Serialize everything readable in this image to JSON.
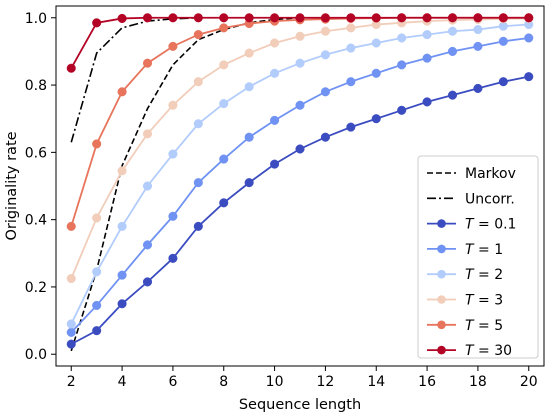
{
  "chart_data": {
    "type": "line",
    "xlabel": "Sequence length",
    "ylabel": "Originality rate",
    "xlim": [
      1.4,
      20.6
    ],
    "ylim": [
      -0.035,
      1.035
    ],
    "xticks": [
      2,
      4,
      6,
      8,
      10,
      12,
      14,
      16,
      18,
      20
    ],
    "yticks": [
      0.0,
      0.2,
      0.4,
      0.6,
      0.8,
      1.0
    ],
    "ytick_labels": [
      "0.0",
      "0.2",
      "0.4",
      "0.6",
      "0.8",
      "1.0"
    ],
    "x": [
      2,
      3,
      4,
      5,
      6,
      7,
      8,
      9,
      10,
      11,
      12,
      13,
      14,
      15,
      16,
      17,
      18,
      19,
      20
    ],
    "grid": false,
    "legend_position": "lower-right",
    "reference_lines": [
      {
        "name": "Markov",
        "style": "dashed",
        "color": "#000000",
        "x": [
          2,
          3,
          4,
          5,
          6,
          7,
          8,
          9,
          10,
          11
        ],
        "values": [
          0.01,
          0.25,
          0.56,
          0.73,
          0.86,
          0.935,
          0.965,
          0.985,
          0.995,
          1.0
        ]
      },
      {
        "name": "Uncorr.",
        "style": "dashdot",
        "color": "#000000",
        "x": [
          2,
          3,
          4,
          5,
          6,
          7
        ],
        "values": [
          0.63,
          0.895,
          0.97,
          0.99,
          0.997,
          1.0
        ]
      }
    ],
    "series": [
      {
        "name": "T = 0.1",
        "label_prefix": "T",
        "label_value": "0.1",
        "color": "#3b4cc0",
        "values": [
          0.03,
          0.07,
          0.15,
          0.215,
          0.285,
          0.38,
          0.45,
          0.51,
          0.565,
          0.61,
          0.645,
          0.675,
          0.7,
          0.725,
          0.75,
          0.77,
          0.79,
          0.81,
          0.825
        ]
      },
      {
        "name": "T = 1",
        "label_prefix": "T",
        "label_value": "1",
        "color": "#6f92f3",
        "values": [
          0.065,
          0.145,
          0.235,
          0.325,
          0.41,
          0.51,
          0.58,
          0.645,
          0.695,
          0.74,
          0.78,
          0.81,
          0.835,
          0.86,
          0.88,
          0.9,
          0.915,
          0.93,
          0.94
        ]
      },
      {
        "name": "T = 2",
        "label_prefix": "T",
        "label_value": "2",
        "color": "#b2ccfb",
        "values": [
          0.09,
          0.245,
          0.38,
          0.5,
          0.595,
          0.685,
          0.745,
          0.795,
          0.835,
          0.865,
          0.89,
          0.91,
          0.925,
          0.94,
          0.95,
          0.96,
          0.965,
          0.975,
          0.98
        ]
      },
      {
        "name": "T = 3",
        "label_prefix": "T",
        "label_value": "3",
        "color": "#f1cdba",
        "values": [
          0.225,
          0.405,
          0.545,
          0.655,
          0.74,
          0.81,
          0.86,
          0.895,
          0.925,
          0.945,
          0.96,
          0.97,
          0.98,
          0.985,
          0.99,
          0.993,
          0.995,
          0.997,
          0.998
        ]
      },
      {
        "name": "T = 5",
        "label_prefix": "T",
        "label_value": "5",
        "color": "#e7745b",
        "values": [
          0.38,
          0.625,
          0.78,
          0.865,
          0.915,
          0.95,
          0.97,
          0.983,
          0.99,
          0.994,
          0.996,
          0.998,
          0.999,
          1.0,
          1.0,
          1.0,
          1.0,
          1.0,
          1.0
        ]
      },
      {
        "name": "T = 30",
        "label_prefix": "T",
        "label_value": "30",
        "color": "#b40426",
        "values": [
          0.85,
          0.985,
          0.998,
          1.0,
          1.0,
          1.0,
          1.0,
          1.0,
          1.0,
          1.0,
          1.0,
          1.0,
          1.0,
          1.0,
          1.0,
          1.0,
          1.0,
          1.0,
          1.0
        ]
      }
    ]
  }
}
